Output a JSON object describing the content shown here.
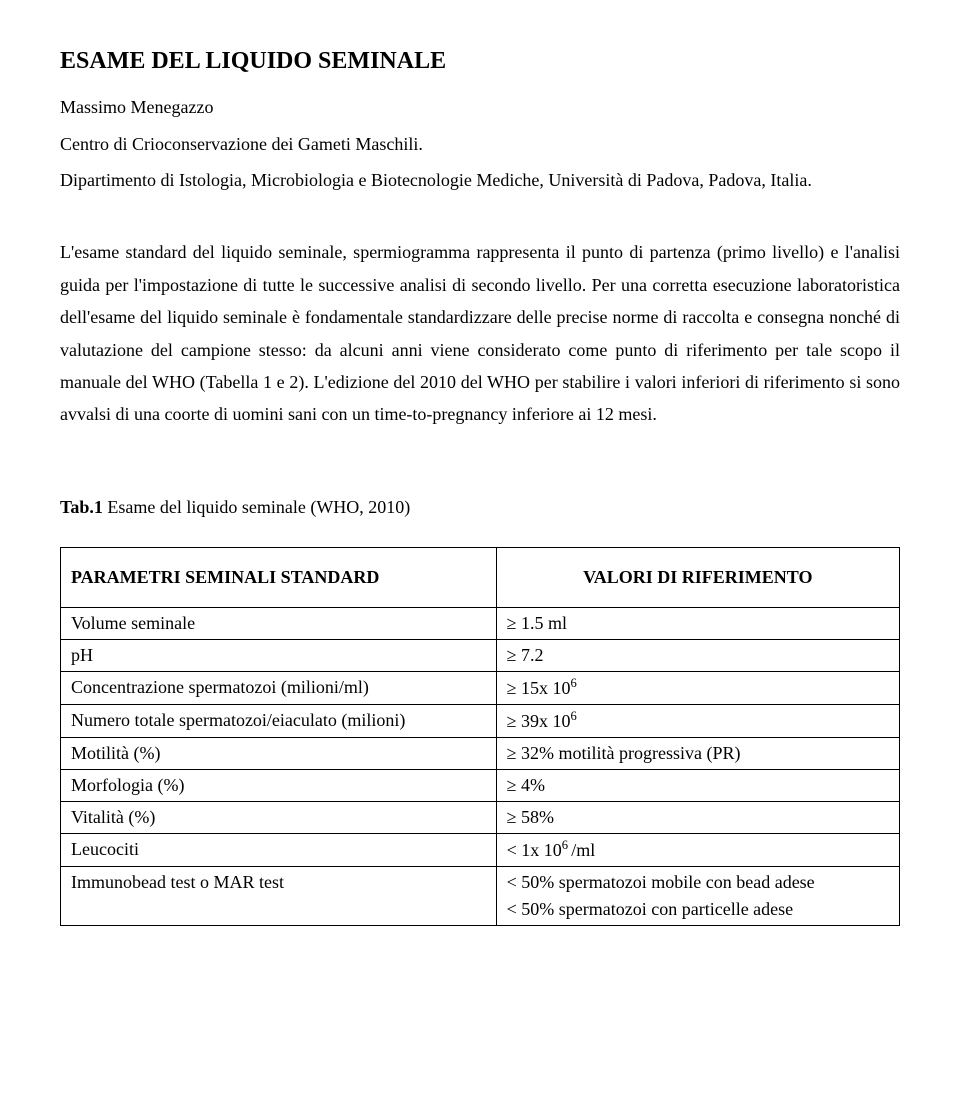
{
  "title": "ESAME DEL LIQUIDO SEMINALE",
  "author": "Massimo Menegazzo",
  "affiliation1": "Centro di Crioconservazione dei Gameti Maschili.",
  "affiliation2": "Dipartimento di Istologia, Microbiologia e Biotecnologie Mediche, Università di Padova, Padova, Italia.",
  "body": "L'esame standard del liquido seminale, spermiogramma rappresenta il punto di partenza (primo livello) e l'analisi guida per l'impostazione di tutte le successive analisi di secondo livello. Per una corretta esecuzione laboratoristica dell'esame del liquido seminale è fondamentale standardizzare delle precise norme di raccolta e consegna nonché di valutazione del campione stesso: da alcuni anni viene considerato come punto di riferimento per tale scopo il manuale del WHO (Tabella 1 e 2). L'edizione del 2010 del WHO per stabilire i valori inferiori di riferimento si sono avvalsi di una coorte di uomini sani con un time-to-pregnancy inferiore ai 12 mesi.",
  "table_caption_bold": "Tab.1",
  "table_caption_rest": " Esame del liquido seminale (WHO, 2010)",
  "table": {
    "header_left": "PARAMETRI SEMINALI STANDARD",
    "header_right": "VALORI DI RIFERIMENTO",
    "rows": [
      {
        "param": "Volume seminale",
        "value": "≥ 1.5 ml"
      },
      {
        "param": " pH",
        "value": "≥ 7.2"
      },
      {
        "param": "Concentrazione spermatozoi (milioni/ml)",
        "value_pre": "≥ 15x 10",
        "value_sup": "6",
        "value_post": ""
      },
      {
        "param": "Numero totale spermatozoi/eiaculato (milioni)",
        "value_pre": "≥ 39x 10",
        "value_sup": "6",
        "value_post": ""
      },
      {
        "param": "Motilità (%)",
        "value": "≥ 32% motilità progressiva (PR)"
      },
      {
        "param": "Morfologia (%)",
        "value": "≥ 4%"
      },
      {
        "param": "Vitalità (%)",
        "value": "≥ 58%"
      },
      {
        "param": "Leucociti",
        "value_pre": "< 1x 10",
        "value_sup": "6 ",
        "value_post": "/ml"
      },
      {
        "param": "Immunobead test o MAR test",
        "value_line1": "< 50% spermatozoi mobile con bead adese",
        "value_line2": "< 50% spermatozoi con particelle adese"
      }
    ]
  }
}
